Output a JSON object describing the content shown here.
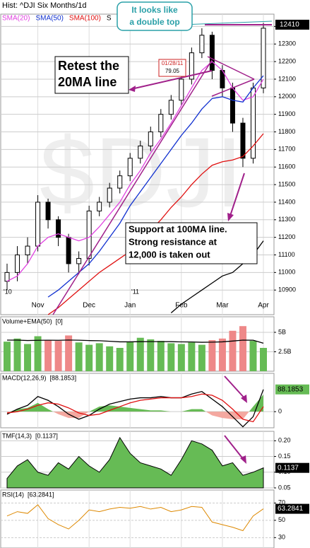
{
  "chart_data": [
    {
      "type": "candlestick",
      "title": "Hist: ^DJI Six Months/1d",
      "watermark": "$DJI",
      "categories": [
        null,
        null,
        null,
        "Nov",
        null,
        null,
        null,
        null,
        "Dec",
        null,
        null,
        null,
        "Jan",
        null,
        null,
        null,
        null,
        "Feb",
        null,
        null,
        null,
        "Mar",
        null,
        null,
        null,
        "Apr"
      ],
      "year_labels": [
        "'10",
        "'11"
      ],
      "open": [
        10950,
        11000,
        11100,
        11150,
        11400,
        11300,
        11200,
        11050,
        11080,
        11350,
        11400,
        11480,
        11550,
        11650,
        11720,
        11800,
        11900,
        11980,
        12100,
        12250,
        12350,
        12150,
        12050,
        11850,
        11650,
        12050
      ],
      "high": [
        11050,
        11150,
        11200,
        11440,
        11420,
        11320,
        11220,
        11120,
        11380,
        11430,
        11510,
        11580,
        11680,
        11750,
        11830,
        11930,
        12010,
        12130,
        12280,
        12390,
        12370,
        12180,
        12080,
        11880,
        12080,
        12420
      ],
      "low": [
        10900,
        10950,
        11050,
        11120,
        11250,
        11150,
        11000,
        10990,
        11040,
        11320,
        11370,
        11450,
        11520,
        11620,
        11690,
        11770,
        11870,
        11950,
        12070,
        12220,
        12100,
        12000,
        11800,
        11600,
        11620,
        12020
      ],
      "close": [
        11000,
        11100,
        11150,
        11400,
        11300,
        11200,
        11050,
        11080,
        11350,
        11400,
        11480,
        11550,
        11650,
        11720,
        11800,
        11900,
        11980,
        12100,
        12250,
        12350,
        12150,
        12050,
        11850,
        11650,
        12050,
        12390
      ],
      "series": [
        {
          "name": "SMA(20)",
          "color": "#e040e0",
          "values": [
            10950,
            10980,
            11050,
            11150,
            11200,
            11220,
            11200,
            11180,
            11200,
            11260,
            11330,
            11400,
            11500,
            11580,
            11680,
            11760,
            11850,
            11950,
            12050,
            12150,
            12200,
            12150,
            12050,
            11980,
            12000,
            12100
          ]
        },
        {
          "name": "SMA(50)",
          "color": "#1030d0",
          "values": [
            null,
            null,
            null,
            null,
            10860,
            10900,
            10950,
            11000,
            11050,
            11120,
            11200,
            11280,
            11380,
            11460,
            11540,
            11620,
            11700,
            11780,
            11850,
            11930,
            11990,
            12000,
            11980,
            11970,
            12050,
            12120
          ]
        },
        {
          "name": "SMA(100)",
          "color": "#e01010",
          "values": [
            null,
            null,
            null,
            null,
            10760,
            10800,
            10850,
            10900,
            10950,
            11000,
            11040,
            11080,
            11120,
            11180,
            11240,
            11300,
            11370,
            11430,
            11500,
            11560,
            11610,
            11630,
            11640,
            11660,
            11720,
            11790
          ]
        },
        {
          "name": "S",
          "color": "#000000",
          "values": [
            null,
            null,
            null,
            null,
            null,
            null,
            null,
            null,
            null,
            null,
            null,
            null,
            null,
            null,
            null,
            null,
            10770,
            10820,
            10860,
            10900,
            10940,
            10980,
            11000,
            11050,
            11100,
            11180
          ]
        }
      ],
      "last_price": 12410,
      "ylim": [
        10760,
        12470
      ],
      "yticks": [
        10900,
        11000,
        11100,
        11200,
        11300,
        11400,
        11500,
        11600,
        11700,
        11800,
        11900,
        12000,
        12100,
        12200,
        12300,
        12400
      ],
      "grid": true,
      "annotations": [
        [
          "It looks like",
          "a double top"
        ],
        [
          "Retest the",
          "20MA line"
        ],
        [
          "01/28/11",
          "79.05"
        ],
        [
          "Support at 100MA line.",
          "Strong resistance at",
          "12,000 is taken out"
        ]
      ]
    },
    {
      "type": "bar",
      "title": "Volume+EMA(50)",
      "current": "[0]",
      "up_color": "#66bb55",
      "down_color": "#ee8888",
      "values": [
        3800000000,
        4200000000,
        3500000000,
        4500000000,
        4000000000,
        3900000000,
        4600000000,
        3700000000,
        3400000000,
        3600000000,
        3200000000,
        3000000000,
        3800000000,
        4300000000,
        4100000000,
        3900000000,
        3600000000,
        3500000000,
        3700000000,
        3400000000,
        4000000000,
        4200000000,
        5200000000,
        5800000000,
        3900000000,
        3000000000
      ],
      "series": [
        {
          "color": "#000000",
          "values": [
            4000000000,
            4000000000,
            3950000000,
            3980000000,
            3990000000,
            3980000000,
            4010000000,
            3990000000,
            3940000000,
            3920000000,
            3850000000,
            3780000000,
            3780000000,
            3800000000,
            3810000000,
            3810000000,
            3800000000,
            3770000000,
            3760000000,
            3720000000,
            3740000000,
            3780000000,
            3880000000,
            4000000000,
            3990000000,
            3600000000
          ]
        }
      ],
      "ylim": [
        0,
        7000000000
      ],
      "yticks": [
        {
          "value": 2500000000,
          "label": "2.5B"
        },
        {
          "value": 5000000000,
          "label": "5B"
        }
      ],
      "grid": true
    },
    {
      "type": "area",
      "title": "MACD(12,26,9)",
      "current": "[88.1853]",
      "pos_color": "#66bb55",
      "neg_color": "#f4a8a0",
      "values": [
        -5,
        10,
        15,
        35,
        10,
        -10,
        -25,
        -25,
        0,
        20,
        25,
        20,
        15,
        10,
        5,
        5,
        0,
        0,
        10,
        10,
        -15,
        -25,
        -30,
        -30,
        20,
        68
      ],
      "series": [
        {
          "color": "#000000",
          "values": [
            -10,
            10,
            25,
            60,
            45,
            20,
            -10,
            -30,
            -15,
            10,
            30,
            40,
            50,
            55,
            55,
            60,
            55,
            55,
            70,
            80,
            50,
            20,
            -20,
            -60,
            -20,
            88
          ]
        },
        {
          "color": "#e01010",
          "values": [
            -5,
            0,
            10,
            25,
            35,
            30,
            15,
            -5,
            -15,
            -10,
            5,
            20,
            35,
            45,
            50,
            55,
            55,
            55,
            60,
            70,
            65,
            45,
            10,
            -30,
            -40,
            20
          ]
        }
      ],
      "last_value": 88.1853,
      "ylim": [
        -64,
        152
      ],
      "yticks": [
        0
      ],
      "grid": true
    },
    {
      "type": "area",
      "title": "TMF(14,3)",
      "current": "[0.1137]",
      "color": "#66bb55",
      "values": [
        0.08,
        0.12,
        0.14,
        0.1,
        0.09,
        0.13,
        0.11,
        0.15,
        0.12,
        0.1,
        0.14,
        0.21,
        0.16,
        0.13,
        0.12,
        0.11,
        0.09,
        0.14,
        0.2,
        0.19,
        0.17,
        0.12,
        0.13,
        0.09,
        0.1,
        0.1137
      ],
      "last_value": 0.1137,
      "ylim": [
        0.05,
        0.23
      ],
      "yticks": [
        0.05,
        {
          "value": 0.1,
          "label": "0.10"
        },
        0.15,
        {
          "value": 0.2,
          "label": "0.20"
        }
      ],
      "grid": true
    },
    {
      "type": "line",
      "title": "RSI(14)",
      "current": "[63.2841]",
      "color": "#dd8800",
      "values": [
        55,
        60,
        58,
        68,
        52,
        45,
        40,
        50,
        62,
        60,
        63,
        65,
        64,
        66,
        63,
        65,
        60,
        62,
        66,
        65,
        48,
        45,
        42,
        38,
        55,
        63.2841
      ],
      "last_value": 63.2841,
      "ylim": [
        18,
        85
      ],
      "yticks": [
        30,
        50,
        70
      ],
      "grid": true
    }
  ]
}
